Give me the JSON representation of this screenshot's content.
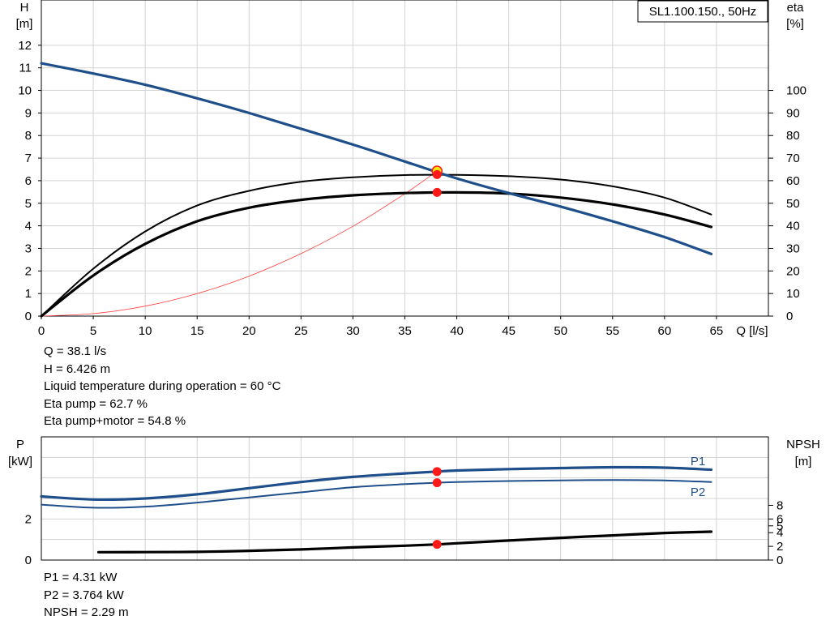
{
  "chart_data": [
    {
      "type": "line",
      "title": "SL1.100.150., 50Hz",
      "xlabel": "Q [l/s]",
      "ylabel_left": [
        "H",
        "[m]"
      ],
      "ylabel_right": [
        "eta",
        "[%]"
      ],
      "xlim": [
        0,
        70
      ],
      "ylim_left": [
        0,
        13
      ],
      "ylim_right": [
        0,
        130
      ],
      "x_ticks": [
        0,
        5,
        10,
        15,
        20,
        25,
        30,
        35,
        40,
        45,
        50,
        55,
        60,
        65
      ],
      "y_ticks_left": [
        0,
        1,
        2,
        3,
        4,
        5,
        6,
        7,
        8,
        9,
        10,
        11,
        12
      ],
      "y_ticks_right": [
        0,
        10,
        20,
        30,
        40,
        50,
        60,
        70,
        80,
        90,
        100
      ],
      "grid": true,
      "series": [
        {
          "role": "H",
          "axis": "left",
          "color": "#1f4f8a",
          "x": [
            0,
            5,
            10,
            15,
            20,
            25,
            30,
            35,
            40,
            45,
            50,
            55,
            60,
            64.5
          ],
          "y": [
            11.2,
            10.75,
            10.25,
            9.65,
            9.0,
            8.3,
            7.6,
            6.85,
            6.1,
            5.45,
            4.85,
            4.2,
            3.5,
            2.75
          ]
        },
        {
          "role": "Eta pump",
          "axis": "right",
          "color": "#000000",
          "x": [
            0,
            5,
            10,
            15,
            20,
            25,
            30,
            35,
            40,
            45,
            50,
            55,
            60,
            64.5
          ],
          "y": [
            0,
            21,
            37.5,
            49,
            55.5,
            59.5,
            61.5,
            62.5,
            62.6,
            62.0,
            60.5,
            57.5,
            52.5,
            45
          ]
        },
        {
          "role": "Eta pump+motor",
          "axis": "right",
          "color": "#000000",
          "x": [
            0,
            5,
            10,
            15,
            20,
            25,
            30,
            35,
            40,
            45,
            50,
            55,
            60,
            64.5
          ],
          "y": [
            0,
            18,
            32,
            42,
            48,
            51.5,
            53.5,
            54.5,
            54.8,
            54.3,
            52.5,
            49.5,
            45,
            39.5
          ]
        },
        {
          "role": "System curve",
          "axis": "left",
          "color": "#ff3b3b",
          "x": [
            0,
            5,
            10,
            15,
            20,
            25,
            30,
            35,
            38.1
          ],
          "y": [
            0,
            0.11,
            0.44,
            1.0,
            1.77,
            2.77,
            3.98,
            5.42,
            6.426
          ]
        }
      ],
      "duty_point": {
        "x": 38.1,
        "H": 6.426,
        "eta_pump": 62.7,
        "eta_pump_motor": 54.8
      }
    },
    {
      "type": "line",
      "ylabel_left": [
        "P",
        "[kW]"
      ],
      "ylabel_right": [
        "NPSH",
        "[m]"
      ],
      "xlim": [
        0,
        70
      ],
      "ylim_left": [
        0,
        6
      ],
      "ylim_right": [
        0,
        18
      ],
      "y_ticks_left": [
        0,
        2
      ],
      "y_ticks_right": [
        0,
        2,
        4,
        5,
        6,
        8
      ],
      "grid": true,
      "series": [
        {
          "name": "P1",
          "axis": "left",
          "color": "#1f4f8a",
          "x": [
            0,
            5,
            10,
            15,
            20,
            25,
            30,
            35,
            38.1,
            40,
            45,
            50,
            55,
            60,
            64.5
          ],
          "y": [
            3.1,
            2.95,
            3.0,
            3.2,
            3.5,
            3.8,
            4.05,
            4.22,
            4.31,
            4.36,
            4.43,
            4.48,
            4.52,
            4.5,
            4.4
          ]
        },
        {
          "name": "P2",
          "axis": "left",
          "color": "#1f4f8a",
          "x": [
            0,
            5,
            10,
            15,
            20,
            25,
            30,
            35,
            38.1,
            40,
            45,
            50,
            55,
            60,
            64.5
          ],
          "y": [
            2.7,
            2.55,
            2.6,
            2.8,
            3.05,
            3.3,
            3.55,
            3.7,
            3.764,
            3.8,
            3.85,
            3.88,
            3.9,
            3.88,
            3.8
          ]
        },
        {
          "role": "NPSH",
          "axis": "right",
          "color": "#000000",
          "x": [
            5.5,
            10,
            15,
            20,
            25,
            30,
            35,
            38.1,
            40,
            45,
            50,
            55,
            60,
            64.5
          ],
          "y": [
            1.15,
            1.16,
            1.2,
            1.35,
            1.55,
            1.85,
            2.1,
            2.29,
            2.45,
            2.85,
            3.25,
            3.6,
            3.95,
            4.15
          ]
        }
      ],
      "duty_point": {
        "x": 38.1,
        "P1": 4.31,
        "P2": 3.764,
        "NPSH": 2.29
      }
    }
  ],
  "readout_top": [
    "Q = 38.1 l/s",
    "H = 6.426 m",
    "Liquid temperature during operation = 60 °C",
    "Eta pump = 62.7 %",
    "Eta pump+motor = 54.8 %"
  ],
  "readout_bottom": [
    "P1 = 4.31 kW",
    "P2 = 3.764 kW",
    "NPSH = 2.29 m"
  ],
  "colors": {
    "curve_blue": "#1f4f8a",
    "system_red": "#ff3b3b",
    "marker_red": "#ff1a1a",
    "marker_yellow": "#ffe600",
    "grid": "#d3d3d3"
  }
}
